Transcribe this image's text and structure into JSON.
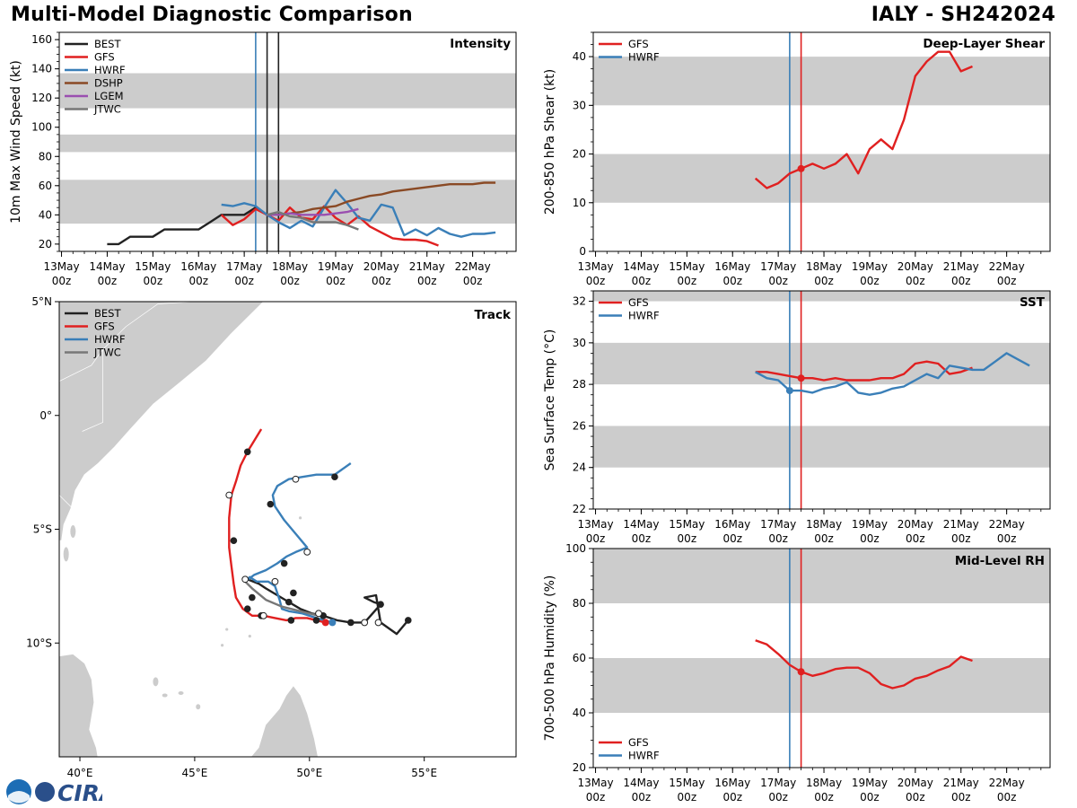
{
  "header": {
    "title_left": "Multi-Model Diagnostic Comparison",
    "title_right": "IALY - SH242024"
  },
  "colors": {
    "BEST": "#222222",
    "GFS": "#e02020",
    "HWRF": "#3a7fb8",
    "DSHP": "#8a4a25",
    "LGEM": "#9a4fb0",
    "JTWC": "#777777",
    "band": "#cccccc",
    "land": "#cccccc",
    "coast": "#ffffff"
  },
  "time_axis": {
    "ticks": [
      0,
      1,
      2,
      3,
      4,
      5,
      6,
      7,
      8,
      9
    ],
    "labels": [
      "13May",
      "14May",
      "15May",
      "16May",
      "17May",
      "18May",
      "19May",
      "20May",
      "21May",
      "22May"
    ],
    "sublabel": "00z",
    "xlim": [
      -0.05,
      9.95
    ]
  },
  "logo": {
    "text": "CIRA"
  },
  "chart_data": [
    {
      "type": "line",
      "panel": "intensity",
      "label": "Intensity",
      "ylabel": "10m Max Wind Speed (kt)",
      "ylim": [
        15,
        165
      ],
      "yticks": [
        20,
        40,
        60,
        80,
        100,
        120,
        140,
        160
      ],
      "bands": [
        [
          34,
          64
        ],
        [
          83,
          95
        ],
        [
          113,
          137
        ]
      ],
      "vlines": [
        {
          "x": 4.25,
          "model": "HWRF"
        },
        {
          "x": 4.5,
          "model": "BEST"
        },
        {
          "x": 4.75,
          "model": "BEST"
        }
      ],
      "legend": [
        "BEST",
        "GFS",
        "HWRF",
        "DSHP",
        "LGEM",
        "JTWC"
      ],
      "series": [
        {
          "name": "BEST",
          "x": [
            1.0,
            1.25,
            1.5,
            1.75,
            2.0,
            2.25,
            2.5,
            2.75,
            3.0,
            3.25,
            3.5,
            3.75,
            4.0,
            4.25,
            4.5,
            4.75
          ],
          "y": [
            20,
            20,
            25,
            25,
            25,
            30,
            30,
            30,
            30,
            35,
            40,
            40,
            40,
            45,
            40,
            40
          ]
        },
        {
          "name": "GFS",
          "x": [
            3.5,
            3.75,
            4.0,
            4.25,
            4.5,
            4.75,
            5.0,
            5.25,
            5.5,
            5.75,
            6.0,
            6.25,
            6.5,
            6.75,
            7.0,
            7.25,
            7.5,
            7.75,
            8.0,
            8.25
          ],
          "y": [
            40,
            33,
            37,
            44,
            40,
            36,
            45,
            38,
            37,
            46,
            38,
            33,
            39,
            32,
            28,
            24,
            23,
            23,
            22,
            19
          ]
        },
        {
          "name": "HWRF",
          "x": [
            3.5,
            3.75,
            4.0,
            4.25,
            4.5,
            4.75,
            5.0,
            5.25,
            5.5,
            5.75,
            6.0,
            6.25,
            6.5,
            6.75,
            7.0,
            7.25,
            7.5,
            7.75,
            8.0,
            8.25,
            8.5,
            8.75,
            9.0,
            9.25,
            9.5
          ],
          "y": [
            47,
            46,
            48,
            46,
            40,
            35,
            31,
            36,
            32,
            45,
            57,
            48,
            38,
            36,
            47,
            45,
            26,
            30,
            26,
            31,
            27,
            25,
            27,
            27,
            28
          ]
        },
        {
          "name": "DSHP",
          "x": [
            4.5,
            4.75,
            5.0,
            5.25,
            5.5,
            5.75,
            6.0,
            6.25,
            6.5,
            6.75,
            7.0,
            7.25,
            7.5,
            7.75,
            8.0,
            8.25,
            8.5,
            8.75,
            9.0,
            9.25,
            9.5
          ],
          "y": [
            40,
            40,
            41,
            42,
            44,
            45,
            46,
            49,
            51,
            53,
            54,
            56,
            57,
            58,
            59,
            60,
            61,
            61,
            61,
            62,
            62
          ]
        },
        {
          "name": "LGEM",
          "x": [
            4.5,
            4.75,
            5.0,
            5.25,
            5.5,
            5.75,
            6.0,
            6.25,
            6.5
          ],
          "y": [
            40,
            40,
            41,
            40,
            40,
            40,
            41,
            42,
            44
          ]
        },
        {
          "name": "JTWC",
          "x": [
            4.5,
            4.75,
            5.0,
            5.25,
            5.5,
            5.75,
            6.0,
            6.25,
            6.5
          ],
          "y": [
            40,
            42,
            39,
            38,
            35,
            35,
            35,
            33,
            30
          ]
        }
      ]
    },
    {
      "type": "line",
      "panel": "shear",
      "label": "Deep-Layer Shear",
      "ylabel": "200-850 hPa Shear (kt)",
      "ylim": [
        0,
        45
      ],
      "yticks": [
        0,
        10,
        20,
        30,
        40
      ],
      "bands": [
        [
          10,
          20
        ],
        [
          30,
          40
        ]
      ],
      "vlines": [
        {
          "x": 4.25,
          "model": "HWRF"
        },
        {
          "x": 4.5,
          "model": "GFS"
        }
      ],
      "legend": [
        "GFS",
        "HWRF"
      ],
      "series": [
        {
          "name": "GFS",
          "x": [
            3.5,
            3.75,
            4.0,
            4.25,
            4.5,
            4.75,
            5.0,
            5.25,
            5.5,
            5.75,
            6.0,
            6.25,
            6.5,
            6.75,
            7.0,
            7.25,
            7.5,
            7.75,
            8.0,
            8.25
          ],
          "y": [
            15,
            13,
            14,
            16,
            17,
            18,
            17,
            18,
            20,
            16,
            21,
            23,
            21,
            27,
            36,
            39,
            41,
            41,
            37,
            38
          ],
          "marker_x": 4.5
        }
      ]
    },
    {
      "type": "line",
      "panel": "sst",
      "label": "SST",
      "ylabel": "Sea Surface Temp (°C)",
      "ylim": [
        22,
        32.5
      ],
      "yticks": [
        22,
        24,
        26,
        28,
        30,
        32
      ],
      "bands": [
        [
          24,
          26
        ],
        [
          28,
          30
        ],
        [
          32,
          32.5
        ]
      ],
      "vlines": [
        {
          "x": 4.25,
          "model": "HWRF"
        },
        {
          "x": 4.5,
          "model": "GFS"
        }
      ],
      "legend": [
        "GFS",
        "HWRF"
      ],
      "series": [
        {
          "name": "GFS",
          "x": [
            3.5,
            3.75,
            4.0,
            4.25,
            4.5,
            4.75,
            5.0,
            5.25,
            5.5,
            5.75,
            6.0,
            6.25,
            6.5,
            6.75,
            7.0,
            7.25,
            7.5,
            7.75,
            8.0,
            8.25
          ],
          "y": [
            28.6,
            28.6,
            28.5,
            28.4,
            28.3,
            28.3,
            28.2,
            28.3,
            28.2,
            28.2,
            28.2,
            28.3,
            28.3,
            28.5,
            29.0,
            29.1,
            29.0,
            28.5,
            28.6,
            28.8
          ],
          "marker_x": 4.5
        },
        {
          "name": "HWRF",
          "x": [
            3.5,
            3.75,
            4.0,
            4.25,
            4.5,
            4.75,
            5.0,
            5.25,
            5.5,
            5.75,
            6.0,
            6.25,
            6.5,
            6.75,
            7.0,
            7.25,
            7.5,
            7.75,
            8.0,
            8.25,
            8.5,
            8.75,
            9.0,
            9.25,
            9.5
          ],
          "y": [
            28.6,
            28.3,
            28.2,
            27.7,
            27.7,
            27.6,
            27.8,
            27.9,
            28.1,
            27.6,
            27.5,
            27.6,
            27.8,
            27.9,
            28.2,
            28.5,
            28.3,
            28.9,
            28.8,
            28.7,
            28.7,
            29.1,
            29.5,
            29.2,
            28.9
          ],
          "marker_x": 4.25
        }
      ]
    },
    {
      "type": "line",
      "panel": "rh",
      "label": "Mid-Level RH",
      "ylabel": "700-500 hPa Humidity (%)",
      "ylim": [
        20,
        100
      ],
      "yticks": [
        20,
        40,
        60,
        80,
        100
      ],
      "bands": [
        [
          40,
          60
        ],
        [
          80,
          100
        ]
      ],
      "vlines": [
        {
          "x": 4.25,
          "model": "HWRF"
        },
        {
          "x": 4.5,
          "model": "GFS"
        }
      ],
      "legend": [
        "GFS",
        "HWRF"
      ],
      "series": [
        {
          "name": "GFS",
          "x": [
            3.5,
            3.75,
            4.0,
            4.25,
            4.5,
            4.75,
            5.0,
            5.25,
            5.5,
            5.75,
            6.0,
            6.25,
            6.5,
            6.75,
            7.0,
            7.25,
            7.5,
            7.75,
            8.0,
            8.25
          ],
          "y": [
            66.5,
            65,
            61.5,
            57.5,
            55,
            53.5,
            54.5,
            56,
            56.5,
            56.5,
            54.5,
            50.5,
            49,
            50,
            52.5,
            53.5,
            55.5,
            57,
            60.5,
            59
          ],
          "marker_x": 4.5
        }
      ]
    },
    {
      "type": "line",
      "panel": "track",
      "label": "Track",
      "lon_range": [
        39.1,
        59.0
      ],
      "lat_range": [
        -15.0,
        5.0
      ],
      "xticks": [
        40,
        45,
        50,
        55
      ],
      "xtick_labels": [
        "40°E",
        "45°E",
        "50°E",
        "55°E"
      ],
      "yticks": [
        5,
        0,
        -5,
        -10
      ],
      "ytick_labels": [
        "5°N",
        "0°",
        "5°S",
        "10°S"
      ],
      "legend": [
        "BEST",
        "GFS",
        "HWRF",
        "JTWC"
      ],
      "series": [
        {
          "name": "BEST",
          "lon": [
            54.3,
            53.8,
            53.1,
            53.0,
            52.9,
            52.4,
            52.6,
            52.8,
            53.1,
            52.4,
            51.8,
            51.2,
            50.6,
            50.1,
            49.6,
            49.1,
            48.6,
            48.1,
            47.8,
            47.3,
            47.2
          ],
          "lat": [
            -9.0,
            -9.6,
            -9.1,
            -8.5,
            -7.9,
            -8.0,
            -8.1,
            -8.2,
            -8.3,
            -9.1,
            -9.1,
            -9.0,
            -8.8,
            -8.7,
            -8.5,
            -8.2,
            -7.9,
            -7.6,
            -7.4,
            -7.2,
            -7.1
          ],
          "filled_lon": [
            54.3,
            53.1,
            51.8,
            50.6,
            49.1,
            47.5
          ],
          "filled_lat": [
            -9.0,
            -8.3,
            -9.1,
            -8.8,
            -8.2,
            -8.0
          ],
          "open_lon": [
            53.0,
            52.4,
            50.4
          ],
          "open_lat": [
            -9.1,
            -9.1,
            -8.7
          ]
        },
        {
          "name": "GFS",
          "lon": [
            50.7,
            50.3,
            49.9,
            49.4,
            49.0,
            48.5,
            48.0,
            47.5,
            47.1,
            46.8,
            46.7,
            46.6,
            46.5,
            46.5,
            46.6,
            46.8,
            47.0,
            47.3,
            47.6,
            47.9
          ],
          "lat": [
            -9.1,
            -9.0,
            -8.9,
            -8.9,
            -9.0,
            -8.9,
            -8.8,
            -8.8,
            -8.5,
            -8.0,
            -7.4,
            -6.6,
            -5.8,
            -4.5,
            -3.5,
            -2.9,
            -2.2,
            -1.6,
            -1.1,
            -0.6
          ],
          "filled_lon": [
            47.3,
            46.7,
            48.9,
            49.2,
            47.9,
            47.3
          ],
          "filled_lat": [
            -8.5,
            -5.5,
            -6.5,
            -9.0,
            -8.8,
            -1.6
          ],
          "open_lon": [
            46.5,
            48.0
          ],
          "open_lat": [
            -3.5,
            -8.8
          ],
          "end_lon": 50.7,
          "end_lat": -9.1
        },
        {
          "name": "HWRF",
          "lon": [
            51.0,
            50.3,
            49.7,
            49.1,
            48.8,
            48.7,
            48.5,
            48.2,
            47.7,
            47.4,
            47.2,
            47.6,
            48.1,
            48.6,
            49.0,
            49.4,
            49.9,
            49.4,
            48.9,
            48.5,
            48.4,
            48.6,
            49.1,
            49.7,
            50.3,
            51.1,
            51.8
          ],
          "lat": [
            -9.1,
            -8.9,
            -8.7,
            -8.6,
            -8.5,
            -8.1,
            -7.5,
            -7.3,
            -7.3,
            -7.1,
            -7.3,
            -7.0,
            -6.8,
            -6.5,
            -6.2,
            -6.0,
            -5.8,
            -5.2,
            -4.6,
            -4.0,
            -3.5,
            -3.1,
            -2.8,
            -2.7,
            -2.6,
            -2.6,
            -2.1
          ],
          "filled_lon": [
            50.3,
            49.3,
            48.3,
            51.1
          ],
          "filled_lat": [
            -9.0,
            -7.8,
            -3.9,
            -2.7
          ],
          "open_lon": [
            48.5,
            47.2,
            49.9,
            49.4
          ],
          "open_lat": [
            -7.3,
            -7.2,
            -6.0,
            -2.8
          ],
          "end_lon": 51.0,
          "end_lat": -9.1
        },
        {
          "name": "JTWC",
          "lon": [
            50.4,
            49.6,
            48.8,
            48.1,
            47.5,
            47.2
          ],
          "lat": [
            -8.8,
            -8.6,
            -8.4,
            -8.1,
            -7.6,
            -7.3
          ]
        }
      ]
    }
  ]
}
